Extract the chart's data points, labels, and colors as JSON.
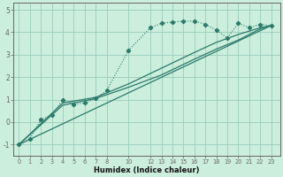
{
  "xlabel": "Humidex (Indice chaleur)",
  "background_color": "#cceedd",
  "grid_color": "#99ccbb",
  "line_color": "#2a7a6a",
  "xlim": [
    -0.5,
    23.8
  ],
  "ylim": [
    -1.5,
    5.3
  ],
  "yticks": [
    -1,
    0,
    1,
    2,
    3,
    4,
    5
  ],
  "xtick_labels": [
    "0",
    "1",
    "2",
    "3",
    "4",
    "5",
    "6",
    "7",
    "8",
    "10",
    "12",
    "13",
    "14",
    "15",
    "16",
    "17",
    "18",
    "19",
    "20",
    "21",
    "22",
    "23"
  ],
  "xtick_pos": [
    0,
    1,
    2,
    3,
    4,
    5,
    6,
    7,
    8,
    10,
    12,
    13,
    14,
    15,
    16,
    17,
    18,
    19,
    20,
    21,
    22,
    23
  ],
  "dotted_x": [
    0,
    1,
    2,
    3,
    4,
    5,
    6,
    7,
    8,
    10,
    12,
    13,
    14,
    15,
    16,
    17,
    18,
    19,
    20,
    21,
    22,
    23
  ],
  "dotted_y": [
    -1.0,
    -0.75,
    0.1,
    0.3,
    1.0,
    0.8,
    0.85,
    1.05,
    1.4,
    3.2,
    4.2,
    4.4,
    4.45,
    4.5,
    4.5,
    4.35,
    4.1,
    3.75,
    4.4,
    4.2,
    4.35,
    4.3
  ],
  "line1_x": [
    0,
    23
  ],
  "line1_y": [
    -1.0,
    4.3
  ],
  "line2_x": [
    0,
    4,
    7,
    10,
    13,
    16,
    18,
    20,
    22,
    23
  ],
  "line2_y": [
    -1.0,
    0.75,
    1.05,
    1.55,
    2.1,
    2.8,
    3.25,
    3.65,
    4.15,
    4.3
  ],
  "line3_x": [
    0,
    4,
    7,
    10,
    13,
    16,
    18,
    20,
    22,
    23
  ],
  "line3_y": [
    -1.0,
    0.85,
    1.1,
    1.7,
    2.4,
    3.1,
    3.55,
    3.9,
    4.2,
    4.3
  ]
}
